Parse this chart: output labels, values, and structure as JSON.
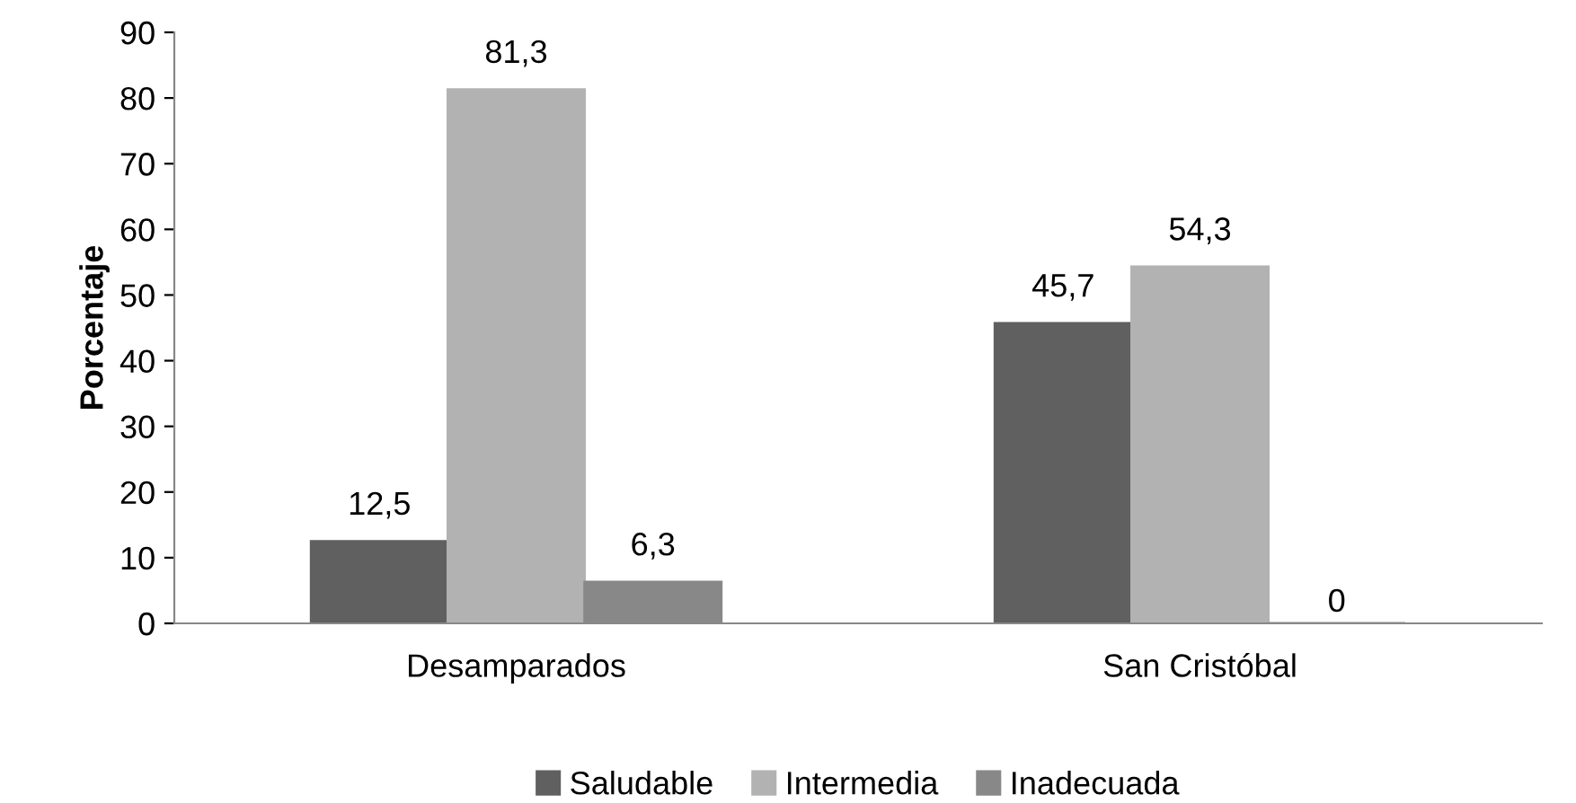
{
  "chart_data": {
    "type": "bar",
    "ylabel": "Porcentaje",
    "categories": [
      "Desamparados",
      "San Cristóbal"
    ],
    "series": [
      {
        "name": "Saludable",
        "color": "#606060",
        "values": [
          12.5,
          45.7
        ],
        "value_labels": [
          "12,5",
          "45,7"
        ]
      },
      {
        "name": "Intermedia",
        "color": "#b2b2b2",
        "values": [
          81.3,
          54.3
        ],
        "value_labels": [
          "81,3",
          "54,3"
        ]
      },
      {
        "name": "Inadecuada",
        "color": "#888888",
        "values": [
          6.3,
          0
        ],
        "value_labels": [
          "6,3",
          "0"
        ]
      }
    ],
    "ylim": [
      0,
      90
    ],
    "yticks": [
      0,
      10,
      20,
      30,
      40,
      50,
      60,
      70,
      80,
      90
    ],
    "grid": false,
    "legend": "bottom"
  }
}
